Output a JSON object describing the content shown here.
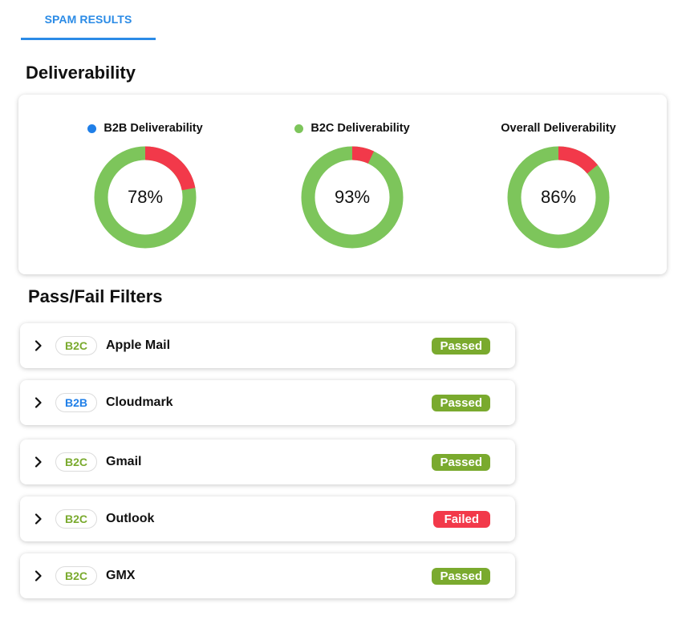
{
  "tabs": [
    {
      "label": "SPAM RESULTS",
      "active": true
    }
  ],
  "deliverability": {
    "title": "Deliverability",
    "charts": [
      {
        "label": "B2B Deliverability",
        "value": 78,
        "display": "78%",
        "legend_color": "#1f7fe8",
        "has_dot": true
      },
      {
        "label": "B2C Deliverability",
        "value": 93,
        "display": "93%",
        "legend_color": "#7dc55b",
        "has_dot": true
      },
      {
        "label": "Overall Deliverability",
        "value": 86,
        "display": "86%",
        "legend_color": null,
        "has_dot": false
      }
    ]
  },
  "filters": {
    "title": "Pass/Fail Filters",
    "rows": [
      {
        "tag": "B2C",
        "name": "Apple Mail",
        "status": "Passed"
      },
      {
        "tag": "B2B",
        "name": "Cloudmark",
        "status": "Passed"
      },
      {
        "tag": "B2C",
        "name": "Gmail",
        "status": "Passed"
      },
      {
        "tag": "B2C",
        "name": "Outlook",
        "status": "Failed"
      },
      {
        "tag": "B2C",
        "name": "GMX",
        "status": "Passed"
      }
    ]
  },
  "colors": {
    "accent": "#2b8be6",
    "pass_fill": "#7dc55b",
    "fail_fill": "#f2394a",
    "passed_badge": "#7aaa2e",
    "failed_badge": "#f2394a",
    "b2c_tag_text": "#7aaa2e",
    "b2b_tag_text": "#1f7fe8"
  },
  "icons": {
    "row_expand": "chevron-right-icon"
  }
}
